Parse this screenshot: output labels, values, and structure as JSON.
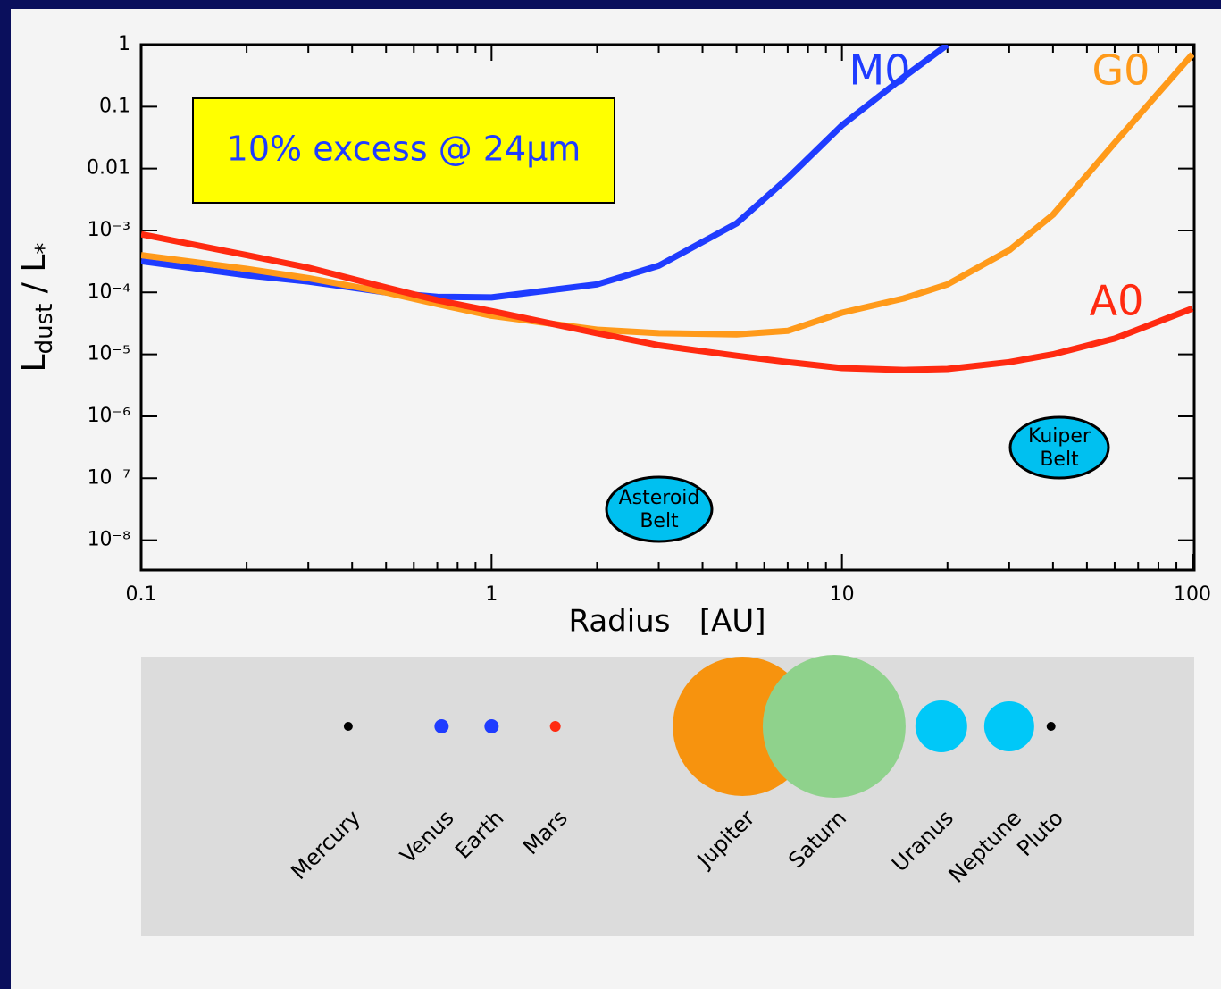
{
  "chart_data": {
    "type": "line",
    "xlabel": "Radius   [AU]",
    "ylabel_parts": [
      "L",
      "dust",
      " / L",
      "*"
    ],
    "xscale": "log",
    "yscale": "log",
    "xlim": [
      0.1,
      100
    ],
    "ylim": [
      3.3e-09,
      1
    ],
    "xticks": [
      0.1,
      1,
      10,
      100
    ],
    "yticks": [
      1,
      0.1,
      0.01,
      {
        "value": 0.001,
        "label": "10⁻³"
      },
      {
        "value": 0.0001,
        "label": "10⁻⁴"
      },
      {
        "value": 1e-05,
        "label": "10⁻⁵"
      },
      {
        "value": 1e-06,
        "label": "10⁻⁶"
      },
      {
        "value": 1e-07,
        "label": "10⁻⁷"
      },
      {
        "value": 1e-08,
        "label": "10⁻⁸"
      }
    ],
    "x": [
      0.1,
      0.2,
      0.3,
      0.5,
      0.7,
      1,
      2,
      3,
      5,
      7,
      10,
      15,
      20,
      30,
      40,
      60,
      100
    ],
    "series": [
      {
        "name": "M0",
        "color": "#1f3cff",
        "values": [
          0.00032,
          0.00019,
          0.00015,
          0.0001,
          8.5e-05,
          8.3e-05,
          0.000135,
          0.00027,
          0.0013,
          0.007,
          0.05,
          0.3,
          1,
          null,
          null,
          null,
          null
        ]
      },
      {
        "name": "G0",
        "color": "#ff9a1a",
        "values": [
          0.0004,
          0.00024,
          0.00017,
          0.0001,
          6.5e-05,
          4.2e-05,
          2.5e-05,
          2.2e-05,
          2.1e-05,
          2.4e-05,
          4.7e-05,
          8e-05,
          0.000135,
          0.00048,
          0.0018,
          0.026,
          0.7
        ]
      },
      {
        "name": "A0",
        "color": "#ff2a10",
        "values": [
          0.00087,
          0.0004,
          0.00025,
          0.00012,
          7.5e-05,
          5e-05,
          2.2e-05,
          1.4e-05,
          9.5e-06,
          7.5e-06,
          6e-06,
          5.6e-06,
          5.8e-06,
          7.5e-06,
          1e-05,
          1.8e-05,
          5.5e-05
        ]
      }
    ],
    "annotation": "10% excess @ 24μm",
    "belts": [
      [
        "Asteroid",
        "Belt"
      ],
      [
        "Kuiper",
        "Belt"
      ]
    ],
    "planets": [
      {
        "name": "Mercury",
        "au": 0.39,
        "color": "#000000"
      },
      {
        "name": "Venus",
        "au": 0.72,
        "color": "#1f3cff"
      },
      {
        "name": "Earth",
        "au": 1,
        "color": "#1f3cff"
      },
      {
        "name": "Mars",
        "au": 1.52,
        "color": "#ff2a10"
      },
      {
        "name": "Jupiter",
        "au": 5.2,
        "color": "#f7930e"
      },
      {
        "name": "Saturn",
        "au": 9.5,
        "color": "#8fd28c"
      },
      {
        "name": "Uranus",
        "au": 19.2,
        "color": "#00c8f8"
      },
      {
        "name": "Neptune",
        "au": 30,
        "color": "#00c8f8"
      },
      {
        "name": "Pluto",
        "au": 39.5,
        "color": "#000000"
      }
    ]
  }
}
